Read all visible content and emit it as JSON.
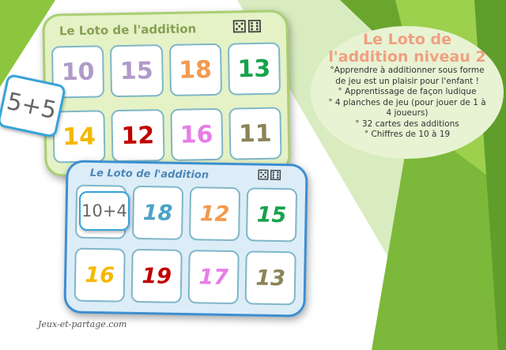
{
  "colors": {
    "green_stripe_dark": "#6aa62e",
    "green_stripe_light": "#9cd04d",
    "title_orange": "#f0a080"
  },
  "board_top": {
    "title": "Le Loto de l'addition",
    "cells": [
      {
        "value": "10",
        "color": "#b09ac8"
      },
      {
        "value": "15",
        "color": "#b09ac8"
      },
      {
        "value": "18",
        "color": "#f39a4f"
      },
      {
        "value": "13",
        "color": "#16a34a"
      },
      {
        "value": "14",
        "color": "#f5b800"
      },
      {
        "value": "12",
        "color": "#c00000"
      },
      {
        "value": "16",
        "color": "#e77de7"
      },
      {
        "value": "11",
        "color": "#8a8456"
      }
    ],
    "card": "5+5"
  },
  "board_bottom": {
    "title": "Le Loto de l'addition",
    "cells": [
      {
        "value": "",
        "color": "#999"
      },
      {
        "value": "18",
        "color": "#4aa3c9"
      },
      {
        "value": "12",
        "color": "#f39a4f"
      },
      {
        "value": "15",
        "color": "#16a34a"
      },
      {
        "value": "16",
        "color": "#f5b800"
      },
      {
        "value": "19",
        "color": "#c00000"
      },
      {
        "value": "17",
        "color": "#e77de7"
      },
      {
        "value": "13",
        "color": "#8a8456"
      }
    ],
    "card": "10+4"
  },
  "info": {
    "title_line1": "Le Loto de",
    "title_line2": "l'addition niveau 2",
    "lines": [
      "°Apprendre à additionner sous forme de jeu est un plaisir pour l'enfant !",
      "° Apprentissage de façon ludique",
      "° 4 planches de jeu (pour jouer de 1 à 4 joueurs)",
      "° 32 cartes des additions",
      "° Chiffres de 10 à 19"
    ]
  },
  "footer": {
    "site": "Jeux-et-partage.com"
  }
}
